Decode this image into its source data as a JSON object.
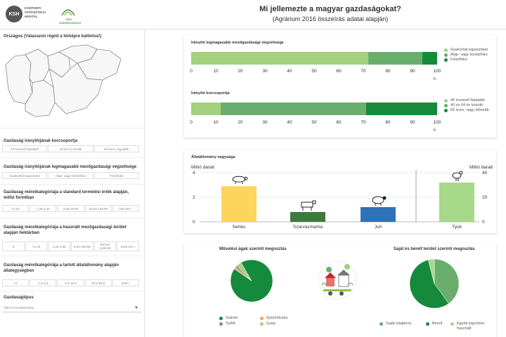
{
  "header": {
    "logo_ksh_abbr": "KSH",
    "logo_ksh_name": "KÖZPONTI STATISZTIKAI HIVATAL",
    "logo_agrar_year": "2020",
    "logo_agrar_name": "AGRÁRCENZUS",
    "title": "Mi jellemezte a magyar gazdaságokat?",
    "subtitle": "(Agrárium 2016 összeírás adatai alapján)"
  },
  "sidebar": {
    "map_title": "Országos (Válasszon régiót a térképre kattintva!)",
    "age_title": "Gazdaság irányítójának korcsoportja",
    "age_buttons": [
      "40 évesnél fiatalabb",
      "40-64 év közötti",
      "65 éves, legalább"
    ],
    "edu_title": "Gazdaság irányítójának legmagasabb mezőgazdasági végzettsége",
    "edu_buttons": [
      "Gyakorlati tapasztalat",
      "Alap- vagy középfokú",
      "Felsőfokú"
    ],
    "so_title": "Gazdaság méretkategóriája a standard termelési érték alapján, millió forintban",
    "so_buttons": [
      "<1,20",
      "1,20-4,49",
      "4,50-29,99",
      "30,00-149,99",
      "150,00<="
    ],
    "area_title": "Gazdaság méretkategóriája a használt mezőgazdasági terület alapján hektárban",
    "area_buttons": [
      "0",
      "<1,00",
      "1,00-4,99",
      "5,00-299,99",
      "300,00-1199,99",
      "1200,00<="
    ],
    "livestock_title": "Gazdaság méretkategóriája a tartott állatállomány alapján állategységben",
    "livestock_buttons": [
      "<1",
      "1,0-4,9",
      "5,0-19,9",
      "20,0-99,9",
      "100<="
    ],
    "type_title": "Gazdaságtípus",
    "type_placeholder": "Nincs kiválasztva"
  },
  "colors": {
    "light_green": "#a3d17e",
    "mid_green": "#6aae6e",
    "dark_green": "#168a3c",
    "yellow": "#fdd55c",
    "blue": "#2e73b8",
    "orange": "#f5a55a",
    "gray": "#888888",
    "pale_green": "#a8d88a"
  },
  "icons": {
    "pig": "pig-icon",
    "cattle": "cattle-icon",
    "sheep": "sheep-icon",
    "chicken": "chicken-icon",
    "farm_illustration": "farm-illustration-icon"
  },
  "chart_data": [
    {
      "type": "bar",
      "orientation": "horizontal-stacked",
      "title": "Irányító legmagasabb mezőgazdasági végzettsége",
      "unit": "%",
      "xlim": [
        0,
        100
      ],
      "ticks": [
        "0",
        "10",
        "20",
        "30",
        "40",
        "50",
        "60",
        "70",
        "80",
        "90",
        "100"
      ],
      "series": [
        {
          "name": "Gyakorlati tapasztalat",
          "value": 72,
          "color": "#a3d17e"
        },
        {
          "name": "Alap- vagy középfokú",
          "value": 22,
          "color": "#6aae6e"
        },
        {
          "name": "Felsőfokú",
          "value": 6,
          "color": "#168a3c"
        }
      ]
    },
    {
      "type": "bar",
      "orientation": "horizontal-stacked",
      "title": "Irányító korcsoportja",
      "unit": "%",
      "xlim": [
        0,
        100
      ],
      "ticks": [
        "0",
        "10",
        "20",
        "30",
        "40",
        "50",
        "60",
        "70",
        "80",
        "90",
        "100"
      ],
      "series": [
        {
          "name": "40 évesnél fiatalabb",
          "value": 12,
          "color": "#a3d17e"
        },
        {
          "name": "40 és 64 év közötti",
          "value": 59,
          "color": "#6aae6e"
        },
        {
          "name": "65 éves, vagy idősebb",
          "value": 29,
          "color": "#168a3c"
        }
      ]
    },
    {
      "type": "bar",
      "title": "Állatállomány nagysága",
      "ylabel_left": "Millió darab",
      "ylabel_right": "Millió darab",
      "ylim_left": [
        0,
        4
      ],
      "ylim_right": [
        0,
        40
      ],
      "ticks_left": [
        "0",
        "2",
        "4"
      ],
      "ticks_right": [
        "0",
        "20",
        "40"
      ],
      "categories": [
        "Sertés",
        "Szarvasmarha",
        "Juh",
        "Tyúk"
      ],
      "values": [
        2.9,
        0.8,
        1.2,
        32
      ],
      "axis": [
        "left",
        "left",
        "left",
        "right"
      ],
      "colors": [
        "#fdd55c",
        "#3d7a3d",
        "#2e73b8",
        "#a8d88a"
      ]
    },
    {
      "type": "pie",
      "title": "Művelési ágak szerinti megoszlás",
      "slices": [
        {
          "name": "Szántó",
          "value": 93,
          "color": "#168a3c"
        },
        {
          "name": "Gyümölcsös",
          "value": 1.5,
          "color": "#f5a55a"
        },
        {
          "name": "Szőlő",
          "value": 1.5,
          "color": "#888888"
        },
        {
          "name": "Gyep",
          "value": 4,
          "color": "#a3d17e"
        }
      ]
    },
    {
      "type": "pie",
      "title": "Saját és bérelt terület szerinti megoszlás",
      "slices": [
        {
          "name": "Saját tulajdonú",
          "value": 40,
          "color": "#6aae6e"
        },
        {
          "name": "Bérelt",
          "value": 56,
          "color": "#168a3c"
        },
        {
          "name": "Egyéb jogcímen használt",
          "value": 4,
          "color": "#a8d88a"
        }
      ]
    }
  ]
}
